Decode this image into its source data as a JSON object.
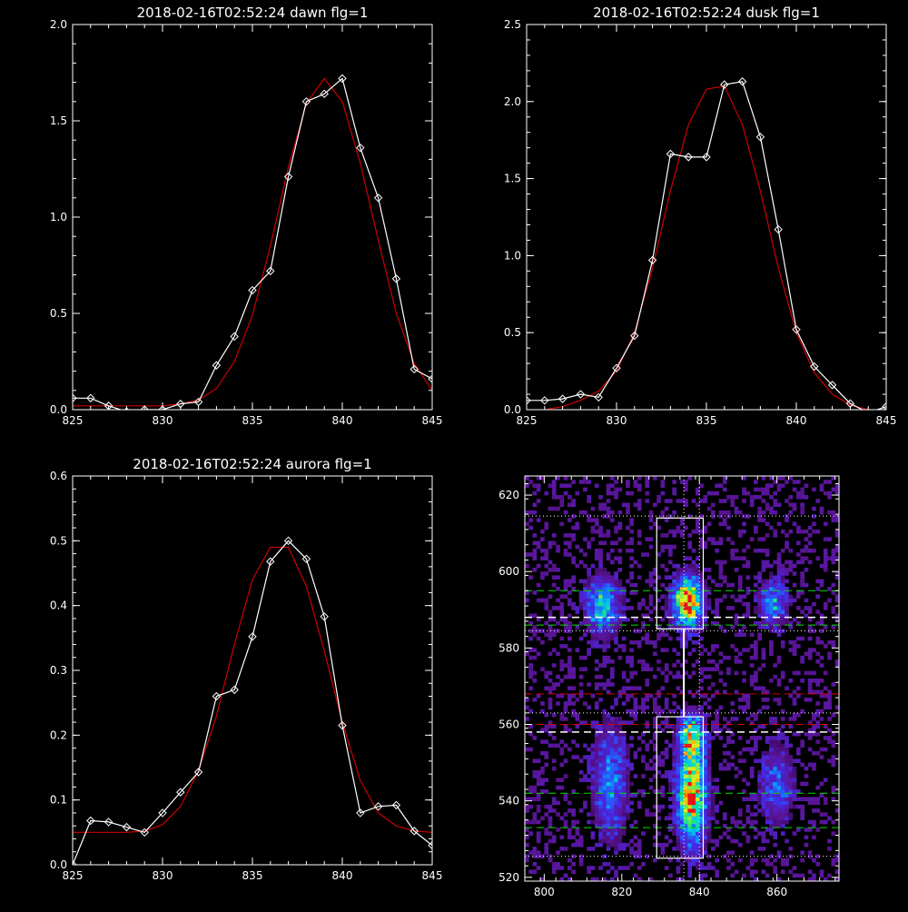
{
  "colors": {
    "background": "#000000",
    "axes": "#ffffff",
    "data": "#ffffff",
    "fit": "#cc0000",
    "box": "#ffffff",
    "green_lines": "#00dd00",
    "red_lines": "#dd0000"
  },
  "chart_data": [
    {
      "type": "line",
      "title": "2018-02-16T02:52:24 dawn flg=1",
      "xlabel": "",
      "ylabel": "",
      "xlim": [
        825,
        845
      ],
      "ylim": [
        0,
        2.0
      ],
      "xticks": [
        825,
        830,
        835,
        840,
        845
      ],
      "xtick_labels": [
        "825",
        "830",
        "835",
        "840",
        "845"
      ],
      "yticks": [
        0,
        0.5,
        1.0,
        1.5,
        2.0
      ],
      "ytick_labels": [
        "0.0",
        "0.5",
        "1.0",
        "1.5",
        "2.0"
      ],
      "series": [
        {
          "x": [
            825,
            826,
            827,
            828,
            829,
            830,
            831,
            832,
            833,
            834,
            835,
            836,
            837,
            838,
            839,
            840,
            841,
            842,
            843,
            844,
            845
          ],
          "y": [
            0.06,
            0.06,
            0.02,
            -0.01,
            0.0,
            0.0,
            0.03,
            0.04,
            0.23,
            0.38,
            0.62,
            0.72,
            1.21,
            1.6,
            1.64,
            1.72,
            1.36,
            1.1,
            0.68,
            0.21,
            0.16
          ],
          "marker": "diamond",
          "color": "#ffffff"
        },
        {
          "x": [
            825,
            826,
            827,
            828,
            829,
            830,
            831,
            832,
            833,
            834,
            835,
            836,
            837,
            838,
            839,
            840,
            841,
            842,
            843,
            844,
            845
          ],
          "y": [
            0.02,
            0.02,
            0.02,
            0.02,
            0.02,
            0.02,
            0.03,
            0.05,
            0.11,
            0.25,
            0.49,
            0.85,
            1.26,
            1.59,
            1.72,
            1.6,
            1.28,
            0.88,
            0.5,
            0.24,
            0.1
          ],
          "marker": "none",
          "color": "#cc0000"
        }
      ]
    },
    {
      "type": "line",
      "title": "2018-02-16T02:52:24 dusk flg=1",
      "xlabel": "",
      "ylabel": "",
      "xlim": [
        825,
        845
      ],
      "ylim": [
        0,
        2.5
      ],
      "xticks": [
        825,
        830,
        835,
        840,
        845
      ],
      "xtick_labels": [
        "825",
        "830",
        "835",
        "840",
        "845"
      ],
      "yticks": [
        0,
        0.5,
        1.0,
        1.5,
        2.0,
        2.5
      ],
      "ytick_labels": [
        "0.0",
        "0.5",
        "1.0",
        "1.5",
        "2.0",
        "2.5"
      ],
      "series": [
        {
          "x": [
            825,
            826,
            827,
            828,
            829,
            830,
            831,
            832,
            833,
            834,
            835,
            836,
            837,
            838,
            839,
            840,
            841,
            842,
            843,
            844,
            845
          ],
          "y": [
            0.06,
            0.06,
            0.07,
            0.1,
            0.08,
            0.27,
            0.48,
            0.97,
            1.66,
            1.64,
            1.64,
            2.11,
            2.13,
            1.77,
            1.17,
            0.52,
            0.28,
            0.16,
            0.04,
            -0.02,
            0.02
          ],
          "marker": "diamond",
          "color": "#ffffff"
        },
        {
          "x": [
            825,
            826,
            827,
            828,
            829,
            830,
            831,
            832,
            833,
            834,
            835,
            836,
            837,
            838,
            839,
            840,
            841,
            842,
            843,
            844,
            845
          ],
          "y": [
            -0.02,
            0.0,
            0.02,
            0.06,
            0.12,
            0.25,
            0.5,
            0.92,
            1.42,
            1.85,
            2.08,
            2.1,
            1.85,
            1.42,
            0.92,
            0.5,
            0.24,
            0.1,
            0.03,
            0.0,
            -0.02
          ],
          "marker": "none",
          "color": "#cc0000"
        }
      ]
    },
    {
      "type": "line",
      "title": "2018-02-16T02:52:24 aurora flg=1",
      "xlabel": "",
      "ylabel": "",
      "xlim": [
        825,
        845
      ],
      "ylim": [
        0,
        0.6
      ],
      "xticks": [
        825,
        830,
        835,
        840,
        845
      ],
      "xtick_labels": [
        "825",
        "830",
        "835",
        "840",
        "845"
      ],
      "yticks": [
        0,
        0.1,
        0.2,
        0.3,
        0.4,
        0.5,
        0.6
      ],
      "ytick_labels": [
        "0.0",
        "0.1",
        "0.2",
        "0.3",
        "0.4",
        "0.5",
        "0.6"
      ],
      "series": [
        {
          "x": [
            825,
            826,
            827,
            828,
            829,
            830,
            831,
            832,
            833,
            834,
            835,
            836,
            837,
            838,
            839,
            840,
            841,
            842,
            843,
            844,
            845
          ],
          "y": [
            0.0,
            0.068,
            0.066,
            0.058,
            0.05,
            0.08,
            0.112,
            0.143,
            0.26,
            0.27,
            0.352,
            0.468,
            0.5,
            0.472,
            0.383,
            0.215,
            0.08,
            0.09,
            0.092,
            0.052,
            0.03
          ],
          "marker": "diamond",
          "color": "#ffffff"
        },
        {
          "x": [
            825,
            826,
            827,
            828,
            829,
            830,
            831,
            832,
            833,
            834,
            835,
            836,
            837,
            838,
            839,
            840,
            841,
            842,
            843,
            844,
            845
          ],
          "y": [
            0.05,
            0.05,
            0.05,
            0.05,
            0.052,
            0.062,
            0.09,
            0.145,
            0.23,
            0.34,
            0.44,
            0.49,
            0.49,
            0.43,
            0.33,
            0.22,
            0.13,
            0.08,
            0.06,
            0.052,
            0.05
          ],
          "marker": "none",
          "color": "#cc0000"
        }
      ]
    },
    {
      "type": "heatmap",
      "title": "",
      "xlabel": "",
      "ylabel": "",
      "xlim": [
        795,
        876
      ],
      "ylim": [
        519,
        625
      ],
      "xticks": [
        800,
        820,
        840,
        860
      ],
      "xtick_labels": [
        "800",
        "820",
        "840",
        "860"
      ],
      "yticks": [
        520,
        540,
        560,
        580,
        600,
        620
      ],
      "ytick_labels": [
        "520",
        "540",
        "560",
        "580",
        "600",
        "620"
      ],
      "blobs": [
        {
          "x": 815,
          "y": 591,
          "sx": 3.0,
          "sy": 5,
          "amp": 0.55
        },
        {
          "x": 837,
          "y": 592,
          "sx": 2.5,
          "sy": 4.5,
          "amp": 1.0
        },
        {
          "x": 859,
          "y": 592,
          "sx": 2.5,
          "sy": 4,
          "amp": 0.45
        },
        {
          "x": 817,
          "y": 545,
          "sx": 3.0,
          "sy": 10,
          "amp": 0.4
        },
        {
          "x": 838,
          "y": 542,
          "sx": 2.5,
          "sy": 9,
          "amp": 0.95
        },
        {
          "x": 838,
          "y": 557,
          "sx": 2.2,
          "sy": 4,
          "amp": 0.55
        },
        {
          "x": 860,
          "y": 544,
          "sx": 3.0,
          "sy": 7,
          "amp": 0.32
        }
      ],
      "boxes": [
        {
          "x0": 829,
          "x1": 841,
          "y0": 585,
          "y1": 614
        },
        {
          "x0": 829,
          "x1": 841,
          "y0": 525,
          "y1": 562
        }
      ],
      "connector": {
        "x": 836,
        "y0": 562,
        "y1": 585
      },
      "hlines_green": [
        595,
        586,
        542,
        533
      ],
      "hlines_white": [
        588,
        558
      ],
      "hlines_red": [
        568,
        560
      ],
      "hlines_dotted": [
        614.5,
        584.5,
        563,
        525.5
      ],
      "vlines_dotted": [
        836,
        840
      ]
    }
  ]
}
